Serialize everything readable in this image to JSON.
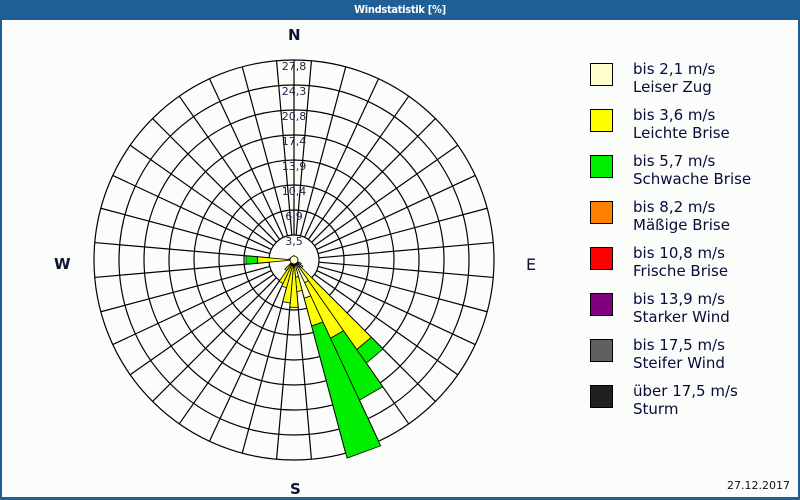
{
  "window": {
    "title": "Windstatistik [%]"
  },
  "footer": {
    "date": "27.12.2017"
  },
  "directions": {
    "n": "N",
    "e": "E",
    "s": "S",
    "w": "W"
  },
  "chart_data": {
    "type": "polar-bar-stacked",
    "title": "Windstatistik [%]",
    "unit": "%",
    "center": [
      294,
      260
    ],
    "ring_labels": [
      "3,5",
      "6,9",
      "10,4",
      "13,9",
      "17,4",
      "20,8",
      "24,3",
      "27,8"
    ],
    "ring_values": [
      3.5,
      6.9,
      10.4,
      13.9,
      17.4,
      20.8,
      24.3,
      27.8
    ],
    "rmax": 27.8,
    "sector_width_deg": 10,
    "legend_position": "right",
    "categories_speed": [
      {
        "range": "bis 2,1 m/s",
        "name": "Leiser Zug",
        "color": "#ffffcc"
      },
      {
        "range": "bis 3,6 m/s",
        "name": "Leichte Brise",
        "color": "#ffff00"
      },
      {
        "range": "bis 5,7 m/s",
        "name": "Schwache Brise",
        "color": "#00ee00"
      },
      {
        "range": "bis 8,2 m/s",
        "name": "Mäßige Brise",
        "color": "#ff8000"
      },
      {
        "range": "bis 10,8 m/s",
        "name": "Frische Brise",
        "color": "#ff0000"
      },
      {
        "range": "bis 13,9 m/s",
        "name": "Starker Wind",
        "color": "#800080"
      },
      {
        "range": "bis 17,5 m/s",
        "name": "Steifer Wind",
        "color": "#606060"
      },
      {
        "range": "über 17,5 m/s",
        "name": "Sturm",
        "color": "#202020"
      }
    ],
    "series": [
      {
        "direction_deg": 270,
        "values": [
          0.6,
          4.5,
          1.6,
          0,
          0,
          0,
          0,
          0
        ]
      },
      {
        "direction_deg": 140,
        "values": [
          1.2,
          14.0,
          2.3,
          0,
          0,
          0,
          0,
          0
        ]
      },
      {
        "direction_deg": 150,
        "values": [
          3.5,
          8.5,
          9.5,
          0,
          0,
          0,
          0,
          0
        ]
      },
      {
        "direction_deg": 160,
        "values": [
          5.5,
          4.0,
          19.0,
          0,
          0,
          0,
          0,
          0
        ]
      },
      {
        "direction_deg": 170,
        "values": [
          2.4,
          2.0,
          0,
          0,
          0,
          0,
          0,
          0
        ]
      },
      {
        "direction_deg": 180,
        "values": [
          0.8,
          5.8,
          0,
          0,
          0,
          0,
          0,
          0
        ]
      },
      {
        "direction_deg": 190,
        "values": [
          0.8,
          5.2,
          0,
          0,
          0,
          0,
          0,
          0
        ]
      },
      {
        "direction_deg": 200,
        "values": [
          0.8,
          3.2,
          0,
          0,
          0,
          0,
          0,
          0
        ]
      },
      {
        "direction_deg": 210,
        "values": [
          0.8,
          2.8,
          0,
          0,
          0,
          0,
          0,
          0
        ]
      },
      {
        "direction_deg": 220,
        "values": [
          0.6,
          1.2,
          0,
          0,
          0,
          0,
          0,
          0
        ]
      },
      {
        "direction_deg": 130,
        "values": [
          0.6,
          0.9,
          0,
          0,
          0,
          0,
          0,
          0
        ]
      },
      {
        "direction_deg": 120,
        "values": [
          0.5,
          0.6,
          0,
          0,
          0,
          0,
          0,
          0
        ]
      },
      {
        "direction_deg": 280,
        "values": [
          0.4,
          0.3,
          0,
          0,
          0,
          0,
          0,
          0
        ]
      },
      {
        "direction_deg": 0,
        "values": [
          0.6,
          0,
          0,
          0,
          0,
          0,
          0,
          0
        ]
      },
      {
        "direction_deg": 30,
        "values": [
          0.4,
          0,
          0,
          0,
          0,
          0,
          0,
          0
        ]
      },
      {
        "direction_deg": 60,
        "values": [
          0.4,
          0,
          0,
          0,
          0,
          0,
          0,
          0
        ]
      },
      {
        "direction_deg": 90,
        "values": [
          0.4,
          0,
          0,
          0,
          0,
          0,
          0,
          0
        ]
      },
      {
        "direction_deg": 330,
        "values": [
          0.5,
          0,
          0,
          0,
          0,
          0,
          0,
          0
        ]
      }
    ]
  }
}
